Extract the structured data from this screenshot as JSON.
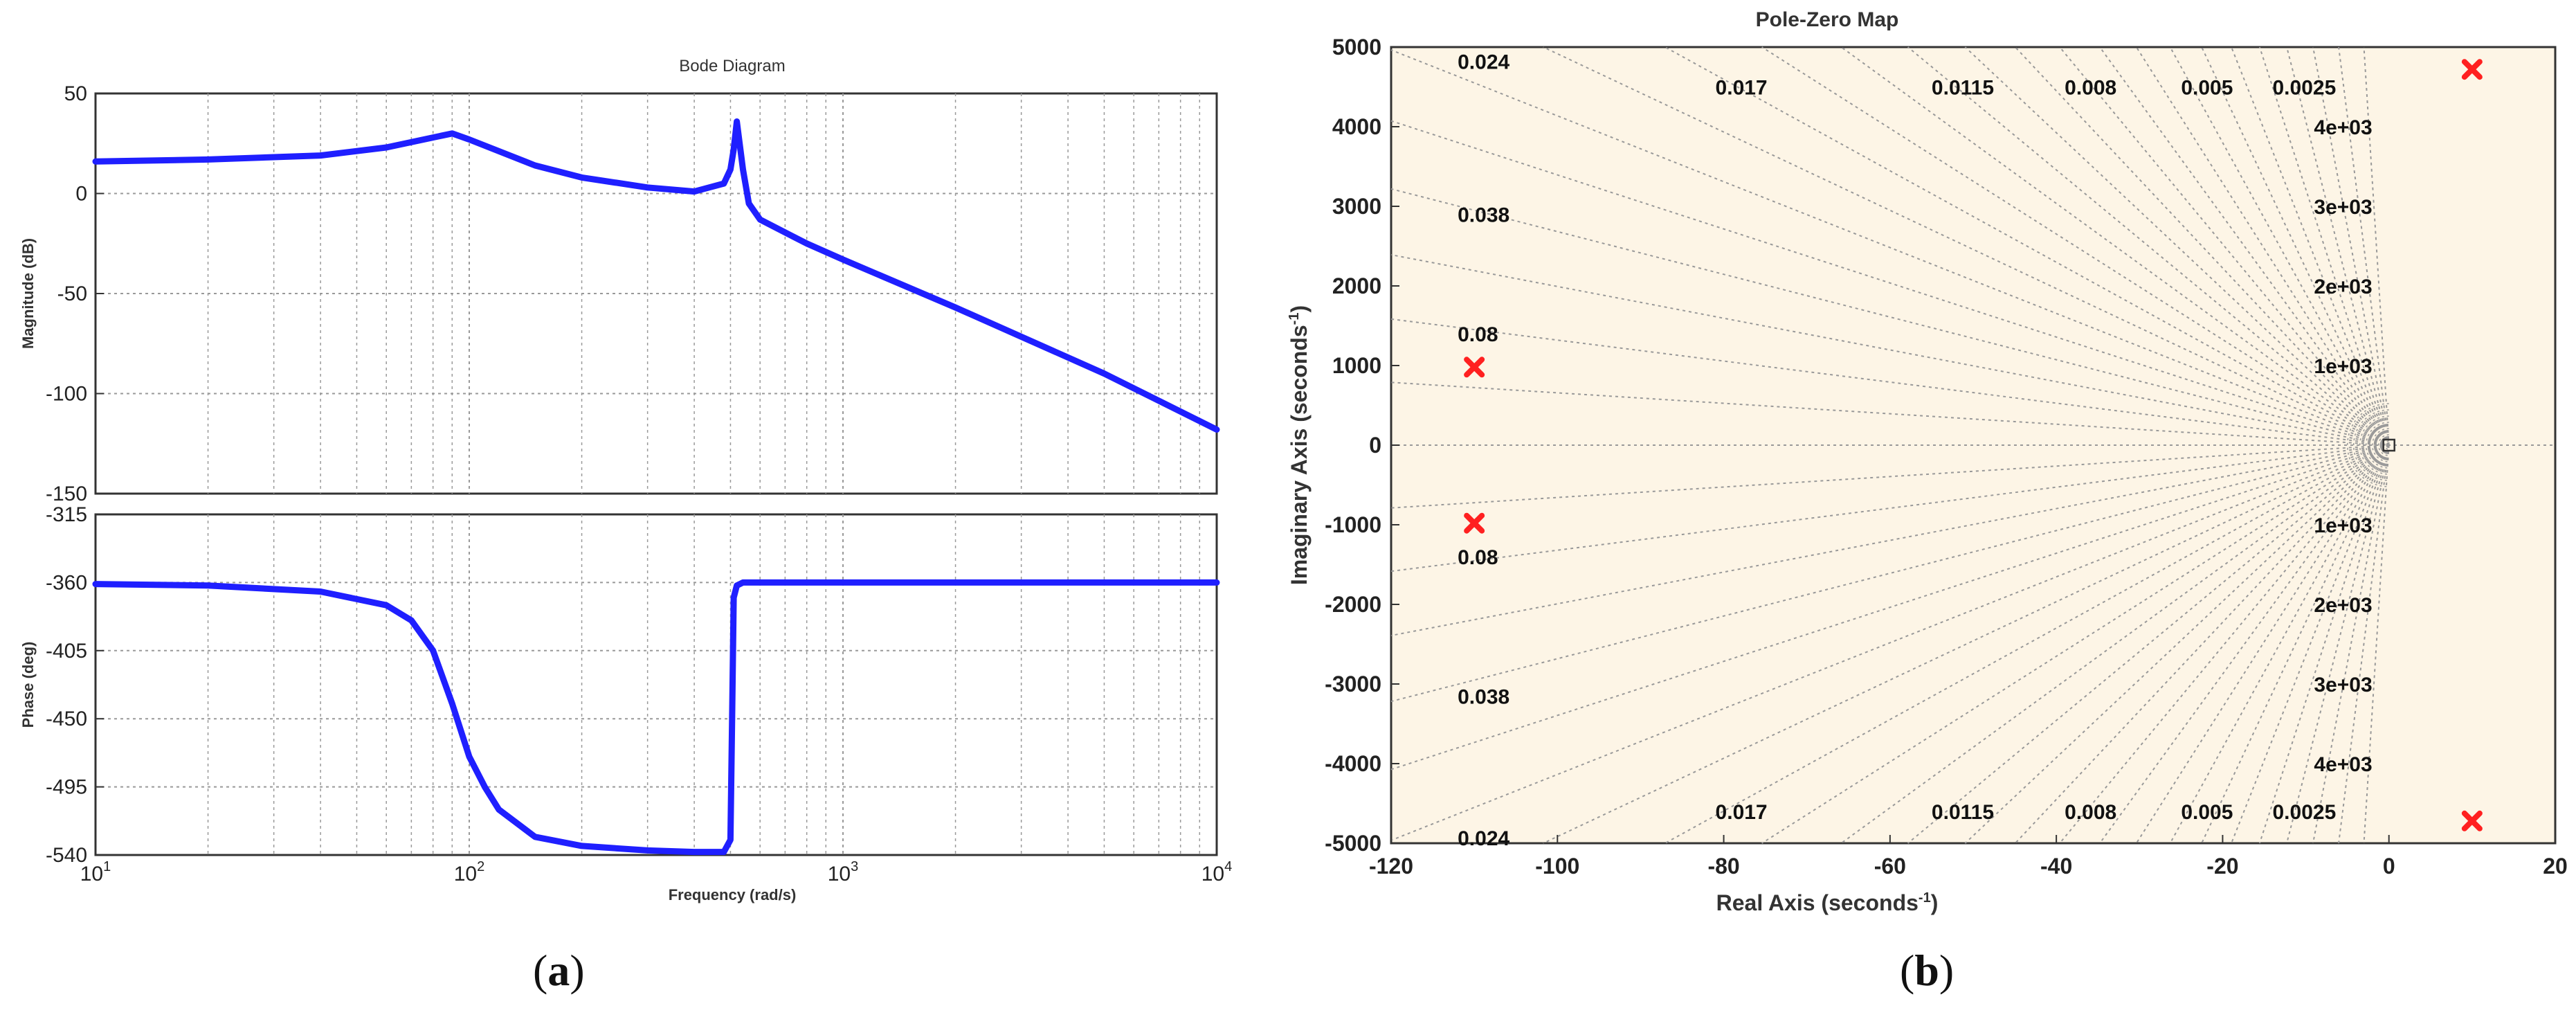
{
  "labels": {
    "a": "a",
    "b": "b"
  },
  "colors": {
    "bode_line": "#1f1fff",
    "pole_marker": "#ff2020",
    "pz_background": "#fdf5e6",
    "grid": "#999999"
  },
  "chart_data": [
    {
      "type": "line",
      "title": "Bode Diagram",
      "xlabel": "Frequency  (rad/s)",
      "xscale": "log",
      "xlim": [
        10,
        10000
      ],
      "x_ticks": [
        10,
        100,
        1000,
        10000
      ],
      "x_tick_labels": [
        {
          "base": "10",
          "exp": "1"
        },
        {
          "base": "10",
          "exp": "2"
        },
        {
          "base": "10",
          "exp": "3"
        },
        {
          "base": "10",
          "exp": "4"
        }
      ],
      "grid": true,
      "panels": [
        {
          "name": "magnitude",
          "ylabel": "Magnitude (dB)",
          "ylim": [
            -150,
            50
          ],
          "y_ticks": [
            50,
            0,
            -50,
            -100,
            -150
          ],
          "y_tick_labels": [
            "50",
            "0",
            "-50",
            "-100",
            "-150"
          ],
          "series": [
            {
              "x": [
                10,
                20,
                40,
                60,
                80,
                90,
                100,
                150,
                200,
                300,
                400,
                480,
                500,
                510,
                520,
                540,
                560,
                600,
                800,
                1000,
                2000,
                5000,
                10000
              ],
              "y": [
                16,
                17,
                19,
                23,
                28,
                30,
                27,
                14,
                8,
                3,
                1,
                5,
                12,
                22,
                36,
                12,
                -5,
                -13,
                -25,
                -33,
                -57,
                -90,
                -118
              ]
            }
          ]
        },
        {
          "name": "phase",
          "ylabel": "Phase (deg)",
          "ylim": [
            -540,
            -315
          ],
          "y_ticks": [
            -315,
            -360,
            -405,
            -450,
            -495,
            -540
          ],
          "y_tick_labels": [
            "-315",
            "-360",
            "-405",
            "-450",
            "-495",
            "-540"
          ],
          "series": [
            {
              "x": [
                10,
                20,
                40,
                60,
                70,
                80,
                90,
                100,
                110,
                120,
                150,
                200,
                300,
                400,
                480,
                500,
                505,
                510,
                520,
                540,
                600,
                1000,
                10000
              ],
              "y": [
                -361,
                -362,
                -366,
                -375,
                -385,
                -405,
                -440,
                -475,
                -495,
                -510,
                -528,
                -534,
                -537,
                -538,
                -538,
                -530,
                -450,
                -370,
                -362,
                -360,
                -360,
                -360,
                -360
              ]
            }
          ]
        }
      ]
    },
    {
      "type": "scatter",
      "title": "Pole-Zero Map",
      "xlabel": "Real Axis (seconds",
      "ylabel": "Imaginary Axis (seconds",
      "unit_exponent": "-1",
      "xlim": [
        -120,
        20
      ],
      "ylim": [
        -5000,
        5000
      ],
      "x_ticks": [
        -120,
        -100,
        -80,
        -60,
        -40,
        -20,
        0,
        20
      ],
      "x_tick_labels": [
        "-120",
        "-100",
        "-80",
        "-60",
        "-40",
        "-20",
        "0",
        "20"
      ],
      "y_ticks": [
        5000,
        4000,
        3000,
        2000,
        1000,
        0,
        -1000,
        -2000,
        -3000,
        -4000,
        -5000
      ],
      "y_tick_labels": [
        "5000",
        "4000",
        "3000",
        "2000",
        "1000",
        "0",
        "-1000",
        "-2000",
        "-3000",
        "-4000",
        "-5000"
      ],
      "poles": [
        {
          "re": -110,
          "im": 980
        },
        {
          "re": -110,
          "im": -980
        },
        {
          "re": 10,
          "im": 4720
        },
        {
          "re": 10,
          "im": -4720
        }
      ],
      "zeros": [
        {
          "re": 0,
          "im": 0
        }
      ],
      "damping_labels_top": [
        {
          "text": "0.024",
          "re": -112,
          "im": 4820
        },
        {
          "text": "0.017",
          "re": -81,
          "im": 4500
        },
        {
          "text": "0.0115",
          "re": -55,
          "im": 4500
        },
        {
          "text": "0.008",
          "re": -39,
          "im": 4500
        },
        {
          "text": "0.005",
          "re": -25,
          "im": 4500
        },
        {
          "text": "0.0025",
          "re": -14,
          "im": 4500
        },
        {
          "text": "0.038",
          "re": -112,
          "im": 2900
        },
        {
          "text": "0.08",
          "re": -112,
          "im": 1400
        }
      ],
      "damping_labels_bottom": [
        {
          "text": "0.08",
          "re": -112,
          "im": -1400
        },
        {
          "text": "0.038",
          "re": -112,
          "im": -3150
        },
        {
          "text": "0.017",
          "re": -81,
          "im": -4600
        },
        {
          "text": "0.0115",
          "re": -55,
          "im": -4600
        },
        {
          "text": "0.008",
          "re": -39,
          "im": -4600
        },
        {
          "text": "0.005",
          "re": -25,
          "im": -4600
        },
        {
          "text": "0.0025",
          "re": -14,
          "im": -4600
        },
        {
          "text": "0.024",
          "re": -112,
          "im": -4930
        }
      ],
      "freq_labels": [
        {
          "text": "4e+03",
          "re": -2,
          "im": 4000
        },
        {
          "text": "3e+03",
          "re": -2,
          "im": 3000
        },
        {
          "text": "2e+03",
          "re": -2,
          "im": 2000
        },
        {
          "text": "1e+03",
          "re": -2,
          "im": 1000
        },
        {
          "text": "1e+03",
          "re": -2,
          "im": -1000
        },
        {
          "text": "2e+03",
          "re": -2,
          "im": -2000
        },
        {
          "text": "3e+03",
          "re": -2,
          "im": -3000
        },
        {
          "text": "4e+03",
          "re": -2,
          "im": -4000
        }
      ],
      "damping_grid_lines": [
        0.0025,
        0.005,
        0.008,
        0.0115,
        0.017,
        0.024,
        0.038,
        0.08
      ],
      "grid": true
    }
  ]
}
